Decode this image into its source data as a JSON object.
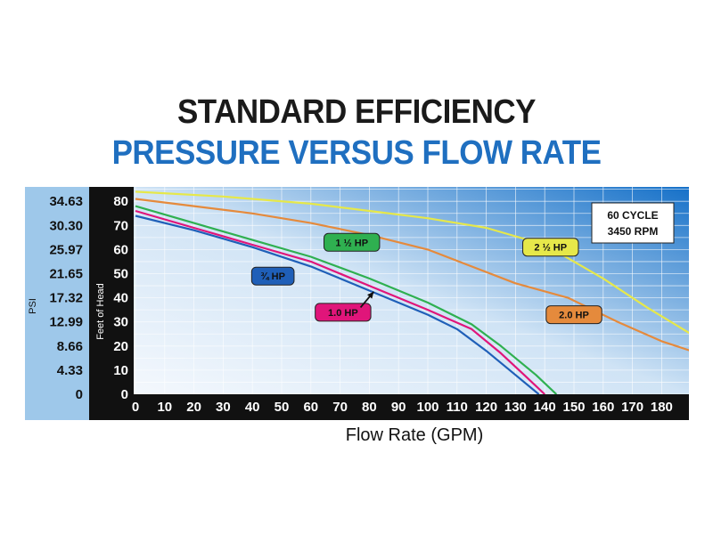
{
  "title": "STANDARD EFFICIENCY",
  "subtitle": "PRESSURE VERSUS FLOW RATE",
  "info_box": {
    "line1": "60 CYCLE",
    "line2": "3450 RPM"
  },
  "colors": {
    "plot_bg_light": "#f4f8fd",
    "plot_bg_dark": "#1570c8",
    "axis_bg": "#111111",
    "psi_bg": "#9ec8ea",
    "hp075": "#1f5fb8",
    "hp10": "#e0157a",
    "hp15": "#2fb050",
    "hp20": "#e58a3c",
    "hp25": "#e6e84a"
  },
  "chart_data": {
    "type": "line",
    "title": "STANDARD EFFICIENCY PRESSURE VERSUS FLOW RATE",
    "xlabel": "Flow Rate (GPM)",
    "ylabel": "Feet of Head",
    "y2label": "PSI",
    "xlim": [
      0,
      190
    ],
    "ylim": [
      0,
      85
    ],
    "x_ticks": [
      0,
      10,
      20,
      30,
      40,
      50,
      60,
      70,
      80,
      90,
      100,
      110,
      120,
      130,
      140,
      150,
      160,
      170,
      180
    ],
    "y_ticks": [
      0,
      10,
      20,
      30,
      40,
      50,
      60,
      70,
      80
    ],
    "psi_ticks": [
      "0",
      "4.33",
      "8.66",
      "12.99",
      "17.32",
      "21.65",
      "25.97",
      "30.30",
      "34.63"
    ],
    "grid": true,
    "series": [
      {
        "name": "¾ HP",
        "color": "#1f5fb8",
        "points": [
          [
            0,
            74
          ],
          [
            20,
            68
          ],
          [
            40,
            61
          ],
          [
            60,
            53
          ],
          [
            80,
            43
          ],
          [
            100,
            33
          ],
          [
            110,
            27
          ],
          [
            120,
            18
          ],
          [
            130,
            8
          ],
          [
            138,
            0
          ]
        ]
      },
      {
        "name": "1.0 HP",
        "color": "#e0157a",
        "points": [
          [
            0,
            76
          ],
          [
            20,
            69
          ],
          [
            40,
            62
          ],
          [
            60,
            55
          ],
          [
            80,
            45
          ],
          [
            100,
            35
          ],
          [
            115,
            27
          ],
          [
            125,
            17
          ],
          [
            133,
            8
          ],
          [
            140,
            0
          ]
        ]
      },
      {
        "name": "1 ½ HP",
        "color": "#2fb050",
        "points": [
          [
            0,
            78
          ],
          [
            20,
            71
          ],
          [
            40,
            64
          ],
          [
            60,
            57
          ],
          [
            80,
            48
          ],
          [
            100,
            38
          ],
          [
            115,
            29
          ],
          [
            125,
            20
          ],
          [
            137,
            8
          ],
          [
            144,
            0
          ]
        ]
      },
      {
        "name": "2.0 HP",
        "color": "#e58a3c",
        "points": [
          [
            0,
            81
          ],
          [
            20,
            78
          ],
          [
            40,
            75
          ],
          [
            60,
            71
          ],
          [
            80,
            66
          ],
          [
            100,
            60
          ],
          [
            115,
            53
          ],
          [
            130,
            46
          ],
          [
            148,
            40
          ],
          [
            165,
            30
          ],
          [
            180,
            22
          ],
          [
            190,
            18
          ]
        ]
      },
      {
        "name": "2 ½ HP",
        "color": "#e6e84a",
        "points": [
          [
            0,
            84
          ],
          [
            30,
            82
          ],
          [
            60,
            79
          ],
          [
            80,
            76
          ],
          [
            100,
            73
          ],
          [
            120,
            69
          ],
          [
            140,
            62
          ],
          [
            160,
            48
          ],
          [
            175,
            36
          ],
          [
            190,
            25
          ]
        ]
      }
    ],
    "labels": [
      {
        "text": "1 ½ HP",
        "x": 74,
        "y": 63,
        "color": "#2fb050"
      },
      {
        "text": "¾ HP",
        "x": 47,
        "y": 49,
        "color": "#1f5fb8"
      },
      {
        "text": "1.0 HP",
        "x": 71,
        "y": 34,
        "color": "#e0157a"
      },
      {
        "text": "2 ½ HP",
        "x": 142,
        "y": 61,
        "color": "#e6e84a"
      },
      {
        "text": "2.0 HP",
        "x": 150,
        "y": 33,
        "color": "#e58a3c"
      }
    ]
  }
}
